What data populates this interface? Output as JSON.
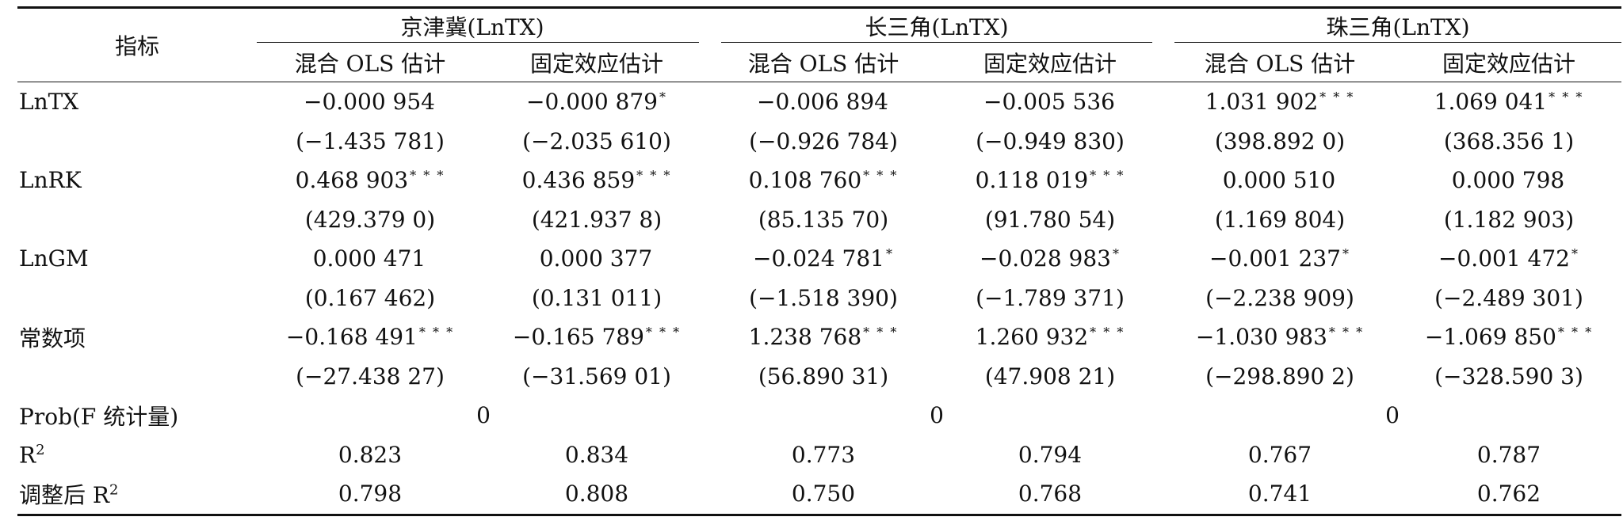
{
  "header": {
    "row_label": "指标",
    "groups": [
      "京津冀(LnTX)",
      "长三角(LnTX)",
      "珠三角(LnTX)"
    ],
    "subcols": [
      "混合 OLS 估计",
      "固定效应估计",
      "混合 OLS 估计",
      "固定效应估计",
      "混合 OLS 估计",
      "固定效应估计"
    ]
  },
  "rows": {
    "lntx": {
      "label": "LnTX",
      "coef": [
        "−0.000 954",
        "−0.000 879",
        "−0.006 894",
        "−0.005 536",
        "1.031 902",
        "1.069 041"
      ],
      "stars": [
        "",
        "*",
        "",
        "",
        "* * *",
        "* * *"
      ],
      "t": [
        "(−1.435 781)",
        "(−2.035 610)",
        "(−0.926 784)",
        "(−0.949 830)",
        "(398.892 0)",
        "(368.356 1)"
      ]
    },
    "lnrk": {
      "label": "LnRK",
      "coef": [
        "0.468 903",
        "0.436 859",
        "0.108 760",
        "0.118 019",
        "0.000 510",
        "0.000 798"
      ],
      "stars": [
        "* * *",
        "* * *",
        "* * *",
        "* * *",
        "",
        ""
      ],
      "t": [
        "(429.379 0)",
        "(421.937 8)",
        "(85.135 70)",
        "(91.780 54)",
        "(1.169 804)",
        "(1.182 903)"
      ]
    },
    "lngm": {
      "label": "LnGM",
      "coef": [
        "0.000 471",
        "0.000 377",
        "−0.024 781",
        "−0.028 983",
        "−0.001 237",
        "−0.001 472"
      ],
      "stars": [
        "",
        "",
        "*",
        "*",
        "*",
        "*"
      ],
      "t": [
        "(0.167 462)",
        "(0.131 011)",
        "(−1.518 390)",
        "(−1.789 371)",
        "(−2.238 909)",
        "(−2.489 301)"
      ]
    },
    "const": {
      "label": "常数项",
      "coef": [
        "−0.168 491",
        "−0.165 789",
        "1.238 768",
        "1.260 932",
        "−1.030 983",
        "−1.069 850"
      ],
      "stars": [
        "* * *",
        "* * *",
        "* * *",
        "* * *",
        "* * *",
        "* * *"
      ],
      "t": [
        "(−27.438 27)",
        "(−31.569 01)",
        "(56.890 31)",
        "(47.908 21)",
        "(−298.890 2)",
        "(−328.590 3)"
      ]
    },
    "prob": {
      "label": "Prob(F 统计量)",
      "values": [
        "0",
        "0",
        "0"
      ]
    },
    "r2": {
      "label": "R",
      "sup": "2",
      "values": [
        "0.823",
        "0.834",
        "0.773",
        "0.794",
        "0.767",
        "0.787"
      ]
    },
    "adj_r2": {
      "label": "调整后 R",
      "sup": "2",
      "values": [
        "0.798",
        "0.808",
        "0.750",
        "0.768",
        "0.741",
        "0.762"
      ]
    }
  }
}
